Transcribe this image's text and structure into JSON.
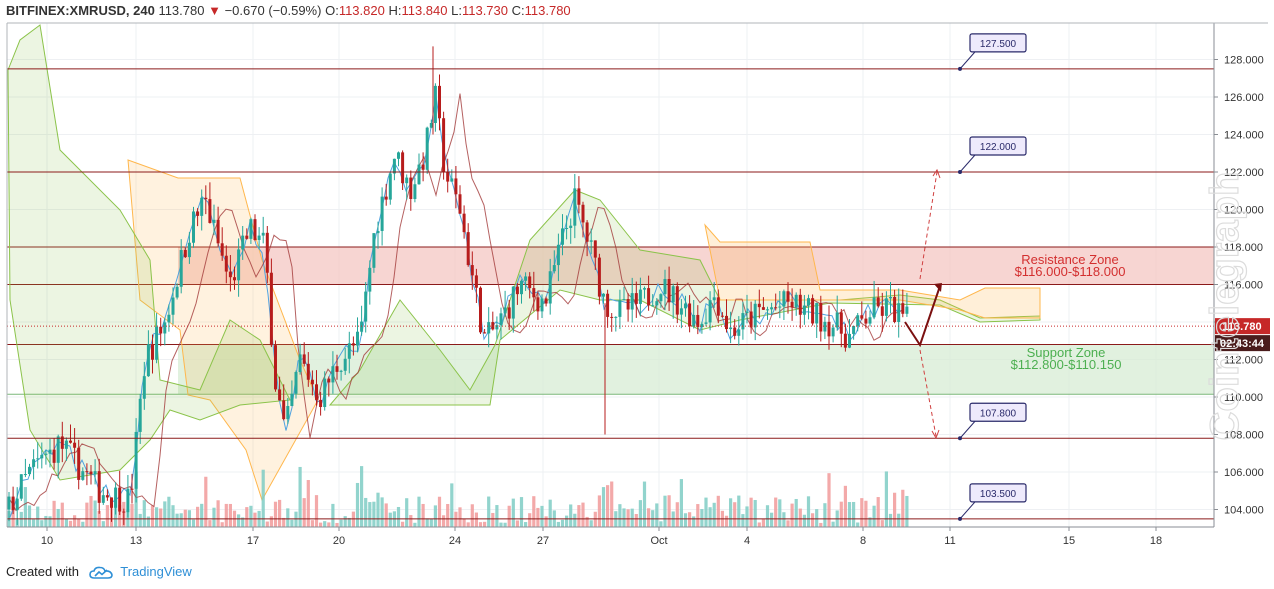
{
  "header": {
    "symbol": "BITFINEX:XMRUSD, 240",
    "last": "113.780",
    "change": "−0.670 (−0.59%)",
    "o_label": "O:",
    "o_value": "113.820",
    "h_label": "H:",
    "h_value": "113.840",
    "l_label": "L:",
    "l_value": "113.730",
    "c_label": "C:",
    "c_value": "113.780"
  },
  "footer": {
    "created_with": "Created with",
    "brand": "TradingView"
  },
  "watermark": "Cointelegraph",
  "colors": {
    "up": "#26a69a",
    "down": "#b71c1c",
    "level_line": "#8b1a1a",
    "resistance_fill": "#f4c7c3",
    "support_fill": "#d7ecd4",
    "cloud_green": "#8bc34a",
    "cloud_orange": "#ffb74d",
    "price_tag": "#c62828",
    "timer_tag": "#4a1c1c",
    "arrow": "#7b1010"
  },
  "chart_data": {
    "type": "candlestick",
    "y_range": [
      102.9,
      130
    ],
    "y_ticks": [
      104,
      106,
      108,
      110,
      112,
      114,
      116,
      118,
      120,
      122,
      124,
      126,
      128
    ],
    "y_tick_labels": [
      "104.000",
      "106.000",
      "108.000",
      "110.000",
      "112.000",
      "114.000",
      "116.000",
      "118.000",
      "120.000",
      "122.000",
      "124.000",
      "126.000",
      "128.000"
    ],
    "x_ticks": [
      "10",
      "13",
      "17",
      "20",
      "24",
      "27",
      "Oct",
      "4",
      "8",
      "11",
      "15",
      "18"
    ],
    "horizontal_levels": [
      {
        "value": 127.5,
        "label": "127.500"
      },
      {
        "value": 122.0,
        "label": "122.000"
      },
      {
        "value": 107.8,
        "label": "107.800"
      },
      {
        "value": 103.5,
        "label": "103.500"
      }
    ],
    "zones": [
      {
        "name": "Resistance Zone",
        "range_label": "$116.000-$118.000",
        "low": 116.0,
        "high": 118.0
      },
      {
        "name": "Support Zone",
        "range_label": "$112.800-$110.150",
        "low": 110.15,
        "high": 112.8
      }
    ],
    "last_price": {
      "value": 113.78,
      "label": "113.780"
    },
    "countdown": "02:43:44"
  }
}
